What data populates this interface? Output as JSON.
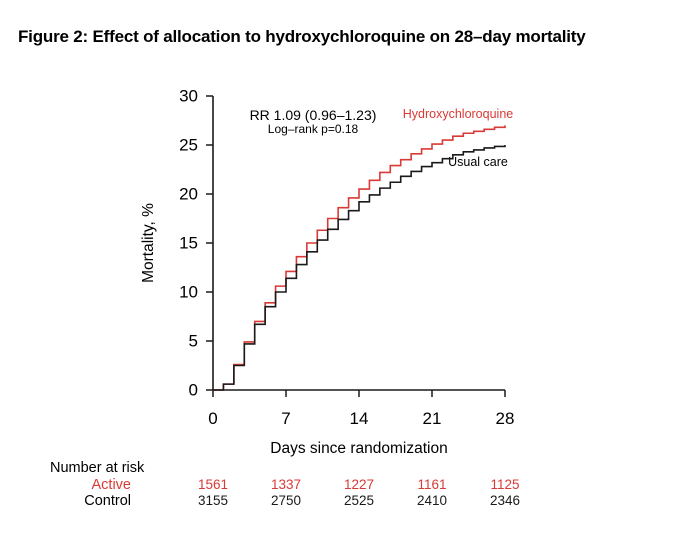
{
  "figure_title": "Figure 2: Effect of allocation to hydroxychloroquine on 28–day mortality",
  "colors": {
    "active": "#d93a35",
    "control": "#1a1a1a",
    "axis": "#1a1a1a",
    "background": "#ffffff"
  },
  "annotation": {
    "line1": "RR 1.09 (0.96–1.23)",
    "line2": "Log–rank p=0.18"
  },
  "chart_data": {
    "type": "line",
    "subtype": "kaplan-meier-step",
    "title": "",
    "xlabel": "Days since randomization",
    "ylabel": "Mortality, %",
    "xlim": [
      0,
      28
    ],
    "ylim": [
      0,
      30
    ],
    "xticks": [
      0,
      7,
      14,
      21,
      28
    ],
    "yticks": [
      0,
      5,
      10,
      15,
      20,
      25,
      30
    ],
    "grid": false,
    "legend_position": "inline-right",
    "x": [
      0,
      1,
      2,
      3,
      4,
      5,
      6,
      7,
      8,
      9,
      10,
      11,
      12,
      13,
      14,
      15,
      16,
      17,
      18,
      19,
      20,
      21,
      22,
      23,
      24,
      25,
      26,
      27,
      28
    ],
    "series": [
      {
        "name": "Hydroxychloroquine",
        "color": "#d93a35",
        "values": [
          0,
          0.6,
          2.6,
          4.9,
          7.0,
          8.9,
          10.6,
          12.1,
          13.6,
          15.0,
          16.3,
          17.5,
          18.6,
          19.6,
          20.5,
          21.4,
          22.2,
          22.9,
          23.5,
          24.1,
          24.6,
          25.1,
          25.5,
          25.9,
          26.2,
          26.4,
          26.6,
          26.8,
          27.0
        ]
      },
      {
        "name": "Usual care",
        "color": "#1a1a1a",
        "values": [
          0,
          0.6,
          2.5,
          4.7,
          6.7,
          8.5,
          10.0,
          11.4,
          12.8,
          14.1,
          15.3,
          16.4,
          17.4,
          18.3,
          19.2,
          19.9,
          20.6,
          21.2,
          21.8,
          22.3,
          22.8,
          23.2,
          23.6,
          24.0,
          24.3,
          24.5,
          24.7,
          24.85,
          25.0
        ]
      }
    ]
  },
  "risk_table": {
    "header": "Number at risk",
    "days": [
      0,
      7,
      14,
      21,
      28
    ],
    "rows": [
      {
        "label": "Active",
        "color": "#d93a35",
        "values": [
          "1561",
          "1337",
          "1227",
          "1161",
          "1125"
        ]
      },
      {
        "label": "Control",
        "color": "#1a1a1a",
        "values": [
          "3155",
          "2750",
          "2525",
          "2410",
          "2346"
        ]
      }
    ]
  }
}
